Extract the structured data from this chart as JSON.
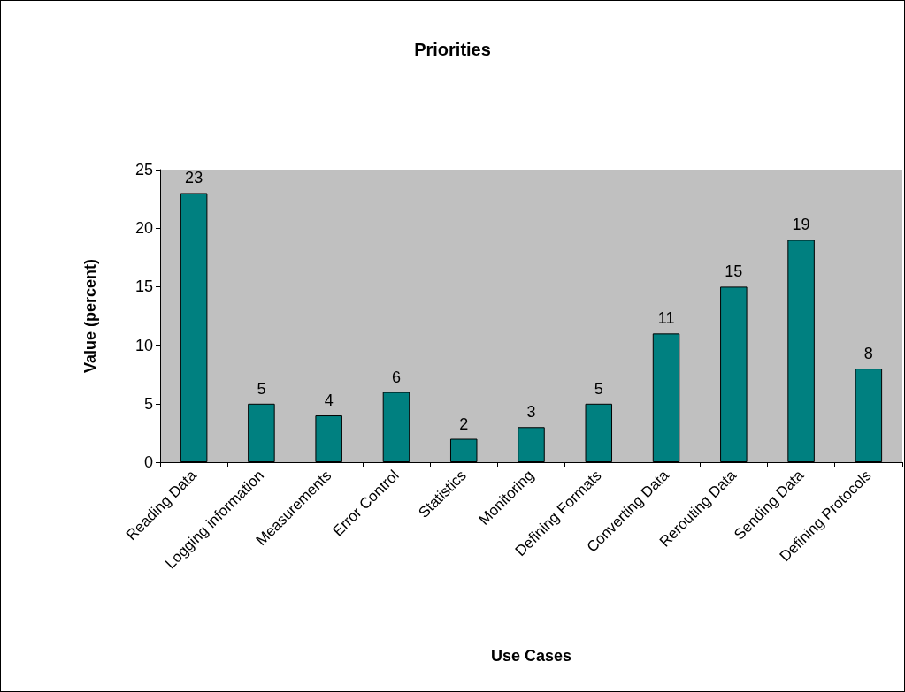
{
  "chart_data": {
    "type": "bar",
    "title": "Priorities",
    "xlabel": "Use Cases",
    "ylabel": "Value (percent)",
    "categories": [
      "Reading Data",
      "Logging information",
      "Measurements",
      "Error Control",
      "Statistics",
      "Monitoring",
      "Defining Formats",
      "Converting Data",
      "Rerouting Data",
      "Sending Data",
      "Defining Protocols"
    ],
    "values": [
      23,
      5,
      4,
      6,
      2,
      3,
      5,
      11,
      15,
      19,
      8
    ],
    "color": "#008080",
    "ylim": [
      0,
      25
    ],
    "yticks": [
      0,
      5,
      10,
      15,
      20,
      25
    ],
    "data_labels": true
  }
}
